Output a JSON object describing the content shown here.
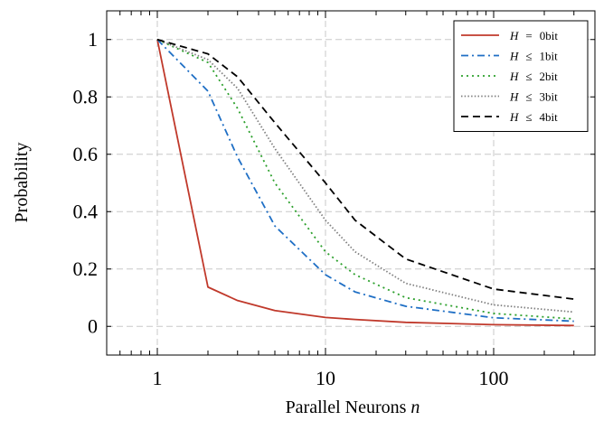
{
  "chart_data": {
    "type": "line",
    "title": "",
    "xlabel": "Parallel Neurons",
    "xlabel_var": "n",
    "ylabel": "Probability",
    "xscale": "log",
    "xlim": [
      0.5,
      400
    ],
    "ylim": [
      -0.1,
      1.1
    ],
    "x_ticks": [
      1,
      10,
      100
    ],
    "x_tick_labels": [
      "1",
      "10",
      "100"
    ],
    "y_ticks": [
      0,
      0.2,
      0.4,
      0.6,
      0.8,
      1
    ],
    "y_tick_labels": [
      "0",
      "0.2",
      "0.4",
      "0.6",
      "0.8",
      "1"
    ],
    "grid": true,
    "legend_position": "top-right",
    "series": [
      {
        "label_var": "H",
        "label_rel": "=",
        "label_value": "0bit",
        "color": "#c0392b",
        "dash": "solid",
        "x": [
          1,
          2,
          3,
          5,
          10,
          15,
          30,
          100,
          300
        ],
        "y": [
          1.0,
          0.137,
          0.09,
          0.055,
          0.031,
          0.024,
          0.014,
          0.006,
          0.003
        ]
      },
      {
        "label_var": "H",
        "label_rel": "≤",
        "label_value": "1bit",
        "color": "#1f6fc5",
        "dash": "dashdot",
        "x": [
          1,
          2,
          3,
          5,
          10,
          15,
          30,
          100,
          300
        ],
        "y": [
          1.0,
          0.82,
          0.59,
          0.35,
          0.18,
          0.12,
          0.07,
          0.03,
          0.018
        ]
      },
      {
        "label_var": "H",
        "label_rel": "≤",
        "label_value": "2bit",
        "color": "#2ca02c",
        "dash": "dotted",
        "x": [
          1,
          2,
          3,
          5,
          10,
          15,
          30,
          100,
          300
        ],
        "y": [
          1.0,
          0.92,
          0.76,
          0.5,
          0.26,
          0.18,
          0.1,
          0.045,
          0.026
        ]
      },
      {
        "label_var": "H",
        "label_rel": "≤",
        "label_value": "3bit",
        "color": "#808080",
        "dash": "densedot",
        "x": [
          1,
          2,
          3,
          5,
          10,
          15,
          30,
          100,
          300
        ],
        "y": [
          1.0,
          0.93,
          0.83,
          0.62,
          0.37,
          0.26,
          0.15,
          0.075,
          0.05
        ]
      },
      {
        "label_var": "H",
        "label_rel": "≤",
        "label_value": "4bit",
        "color": "#000000",
        "dash": "dashed",
        "x": [
          1,
          2,
          3,
          5,
          10,
          15,
          30,
          100,
          300
        ],
        "y": [
          1.0,
          0.95,
          0.87,
          0.71,
          0.5,
          0.37,
          0.235,
          0.13,
          0.095
        ]
      }
    ]
  }
}
